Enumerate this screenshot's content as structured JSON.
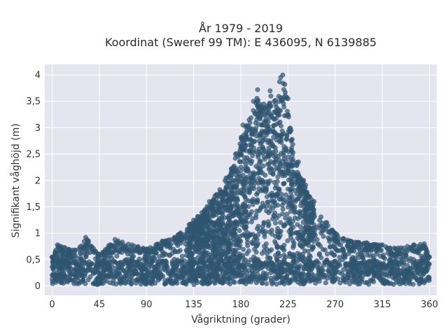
{
  "chart_data": {
    "type": "scatter",
    "title_lines": [
      "År 1979 - 2019",
      "Koordinat (Sweref 99 TM): E 436095, N 6139885"
    ],
    "xlabel": "Vågriktning (grader)",
    "ylabel": "Signifikant våghöjd (m)",
    "xlim": [
      -7,
      367
    ],
    "ylim": [
      -0.18,
      4.2
    ],
    "x_ticks": [
      0,
      45,
      90,
      135,
      180,
      225,
      270,
      315,
      360
    ],
    "x_tick_labels": [
      "0",
      "45",
      "90",
      "135",
      "180",
      "225",
      "270",
      "315",
      "360"
    ],
    "y_ticks": [
      0,
      0.5,
      1,
      1.5,
      2,
      2.5,
      3,
      3.5,
      4
    ],
    "y_tick_labels": [
      "0",
      "0,5",
      "1",
      "1,5",
      "2",
      "2,5",
      "3",
      "3,5",
      "4"
    ],
    "grid": true,
    "colors": {
      "plot_bg": "#e5e5f0",
      "point": "#2f5570",
      "point_opacity": 0.7
    },
    "envelope_points": [
      [
        0,
        0.55
      ],
      [
        5,
        0.78
      ],
      [
        22,
        0.68
      ],
      [
        32,
        0.92
      ],
      [
        45,
        0.6
      ],
      [
        60,
        0.88
      ],
      [
        90,
        0.7
      ],
      [
        105,
        0.85
      ],
      [
        120,
        0.97
      ],
      [
        135,
        1.25
      ],
      [
        150,
        1.6
      ],
      [
        165,
        2.0
      ],
      [
        175,
        2.5
      ],
      [
        182,
        3.05
      ],
      [
        188,
        3.15
      ],
      [
        192,
        3.5
      ],
      [
        196,
        3.72
      ],
      [
        202,
        3.45
      ],
      [
        208,
        3.7
      ],
      [
        213,
        3.52
      ],
      [
        217,
        3.87
      ],
      [
        218,
        3.95
      ],
      [
        220,
        4.0
      ],
      [
        222,
        3.82
      ],
      [
        225,
        3.55
      ],
      [
        228,
        2.95
      ],
      [
        235,
        2.35
      ],
      [
        240,
        2.0
      ],
      [
        250,
        1.6
      ],
      [
        262,
        1.2
      ],
      [
        270,
        1.0
      ],
      [
        285,
        0.85
      ],
      [
        300,
        0.82
      ],
      [
        315,
        0.78
      ],
      [
        330,
        0.72
      ],
      [
        345,
        0.78
      ],
      [
        355,
        0.8
      ],
      [
        360,
        0.55
      ]
    ]
  }
}
